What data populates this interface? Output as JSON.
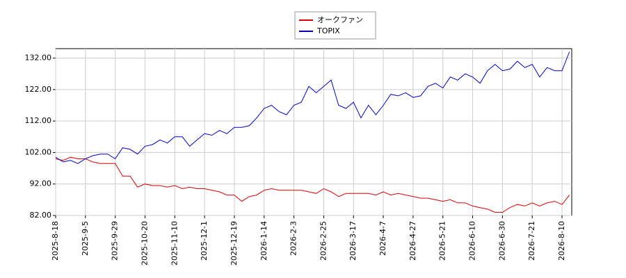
{
  "chart_data": {
    "type": "line",
    "categories": [
      "2025-8-18",
      null,
      null,
      null,
      "2025-9-5",
      null,
      null,
      null,
      "2025-9-29",
      null,
      null,
      null,
      "2025-10-20",
      null,
      null,
      null,
      "2025-11-10",
      null,
      null,
      null,
      "2025-12-1",
      null,
      null,
      null,
      "2025-12-19",
      null,
      null,
      null,
      "2026-1-14",
      null,
      null,
      null,
      "2026-2-3",
      null,
      null,
      null,
      "2026-2-25",
      null,
      null,
      null,
      "2026-3-17",
      null,
      null,
      null,
      "2026-4-7",
      null,
      null,
      null,
      "2026-4-27",
      null,
      null,
      null,
      "2026-5-21",
      null,
      null,
      null,
      "2026-6-10",
      null,
      null,
      null,
      "2026-6-30",
      null,
      null,
      null,
      "2026-7-21",
      null,
      null,
      null,
      "2026-8-10",
      null
    ],
    "series": [
      {
        "name": "オークファン",
        "color": "#dd0000",
        "values": [
          100,
          99.5,
          100.5,
          100,
          100,
          99,
          98.5,
          98.5,
          98.5,
          94.5,
          94.5,
          91,
          92,
          91.5,
          91.5,
          91,
          91.5,
          90.5,
          91,
          90.5,
          90.5,
          90,
          89.5,
          88.5,
          88.5,
          86.5,
          88,
          88.5,
          90,
          90.5,
          90,
          90,
          90,
          90,
          89.5,
          89,
          90.5,
          89.5,
          88,
          89,
          89,
          89,
          89,
          88.5,
          89.5,
          88.5,
          89,
          88.5,
          88,
          87.5,
          87.5,
          87,
          86.5,
          87,
          86,
          86,
          85,
          84.5,
          84,
          83,
          83,
          84.5,
          85.5,
          85,
          86,
          85,
          86,
          86.5,
          85.5,
          88.5
        ]
      },
      {
        "name": "TOPIX",
        "color": "#0000cc",
        "values": [
          100.5,
          99,
          99.5,
          98.5,
          100,
          101,
          101.5,
          101.5,
          100,
          103.5,
          103,
          101.5,
          104,
          104.5,
          106,
          105,
          107,
          107,
          104,
          106,
          108,
          107.5,
          109,
          108,
          110,
          110,
          110.5,
          113,
          116,
          117,
          115,
          114,
          117,
          118,
          123,
          121,
          123,
          125,
          117,
          116,
          118,
          113,
          117,
          114,
          117,
          120.5,
          120,
          121,
          119.5,
          120,
          123,
          124,
          122.5,
          126,
          125,
          127,
          126,
          124,
          128,
          130,
          128,
          128.5,
          131,
          129,
          130,
          126,
          129,
          128,
          128,
          134
        ]
      }
    ],
    "ylim": [
      82,
      135
    ],
    "yticks": [
      {
        "value": 82,
        "label": "82.00"
      },
      {
        "value": 92,
        "label": "92.00"
      },
      {
        "value": 102,
        "label": "102.00"
      },
      {
        "value": 112,
        "label": "112.00"
      },
      {
        "value": 122,
        "label": "122.00"
      },
      {
        "value": 132,
        "label": "132.00"
      }
    ],
    "grid": true
  }
}
